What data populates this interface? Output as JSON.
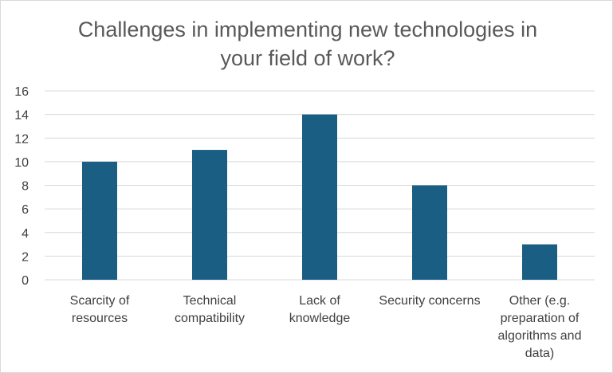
{
  "chart_data": {
    "type": "bar",
    "title_lines": [
      "Challenges in implementing new technologies in",
      "your field of work?"
    ],
    "categories": [
      [
        "Scarcity of",
        "resources"
      ],
      [
        "Technical",
        "compatibility"
      ],
      [
        "Lack of",
        "knowledge"
      ],
      [
        "Security concerns"
      ],
      [
        "Other (e.g.",
        "preparation of",
        "algorithms and",
        "data)"
      ]
    ],
    "values": [
      10,
      11,
      14,
      8,
      3
    ],
    "ylim": [
      0,
      16
    ],
    "y_ticks": [
      "0",
      "2",
      "4",
      "6",
      "8",
      "10",
      "12",
      "14",
      "16"
    ],
    "grid": true,
    "bar_color": "#1a5e84",
    "grid_color": "#d9d9d9"
  }
}
